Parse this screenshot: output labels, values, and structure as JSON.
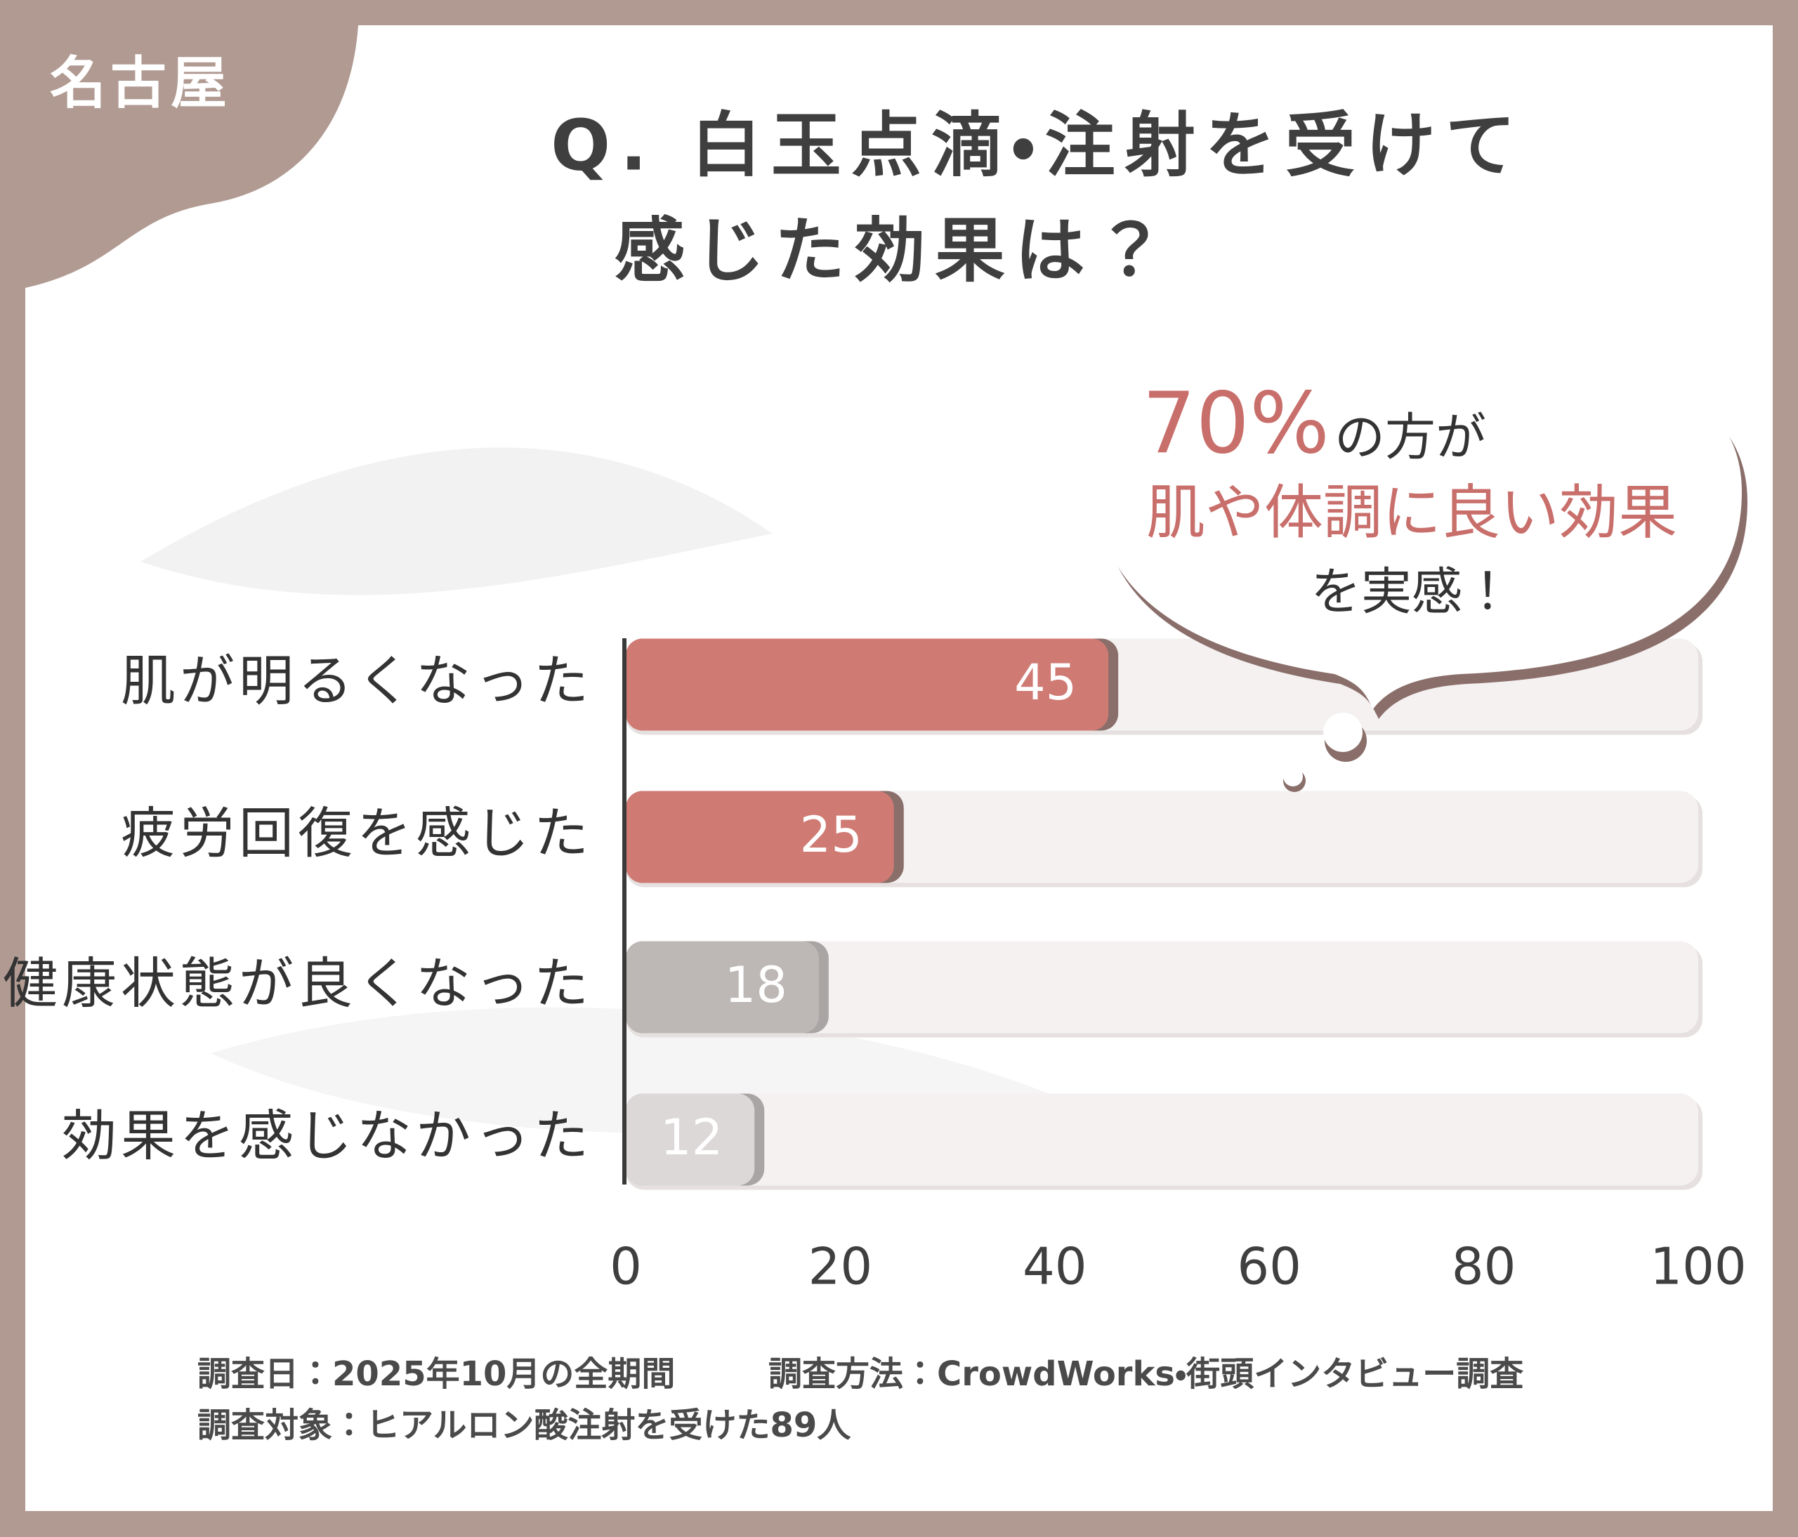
{
  "badge": "名古屋",
  "chart_data": {
    "type": "bar",
    "orientation": "horizontal",
    "title_lines": [
      "Q. 白玉点滴・注射を受けて",
      "感じた効果は？"
    ],
    "categories": [
      "肌が明るくなった",
      "疲労回復を感じた",
      "健康状態が良くなった",
      "効果を感じなかった"
    ],
    "values": [
      45,
      25,
      18,
      12
    ],
    "colors": [
      "#d07a74",
      "#d07a74",
      "#bdb8b6",
      "#dbd8d7"
    ],
    "xlim": [
      0,
      100
    ],
    "xticks": [
      0,
      20,
      40,
      60,
      80,
      100
    ],
    "annotation": {
      "highlight": "70%",
      "text": "の方が",
      "emphasis": "肌や体調に良い効果",
      "closing": "を実感！"
    }
  },
  "notes": [
    "調査日：2025年10月の全期間",
    "調査方法：CrowdWorks・街頭インタビュー調査",
    "調査対象：ヒアルロン酸注射を受けた89人"
  ]
}
